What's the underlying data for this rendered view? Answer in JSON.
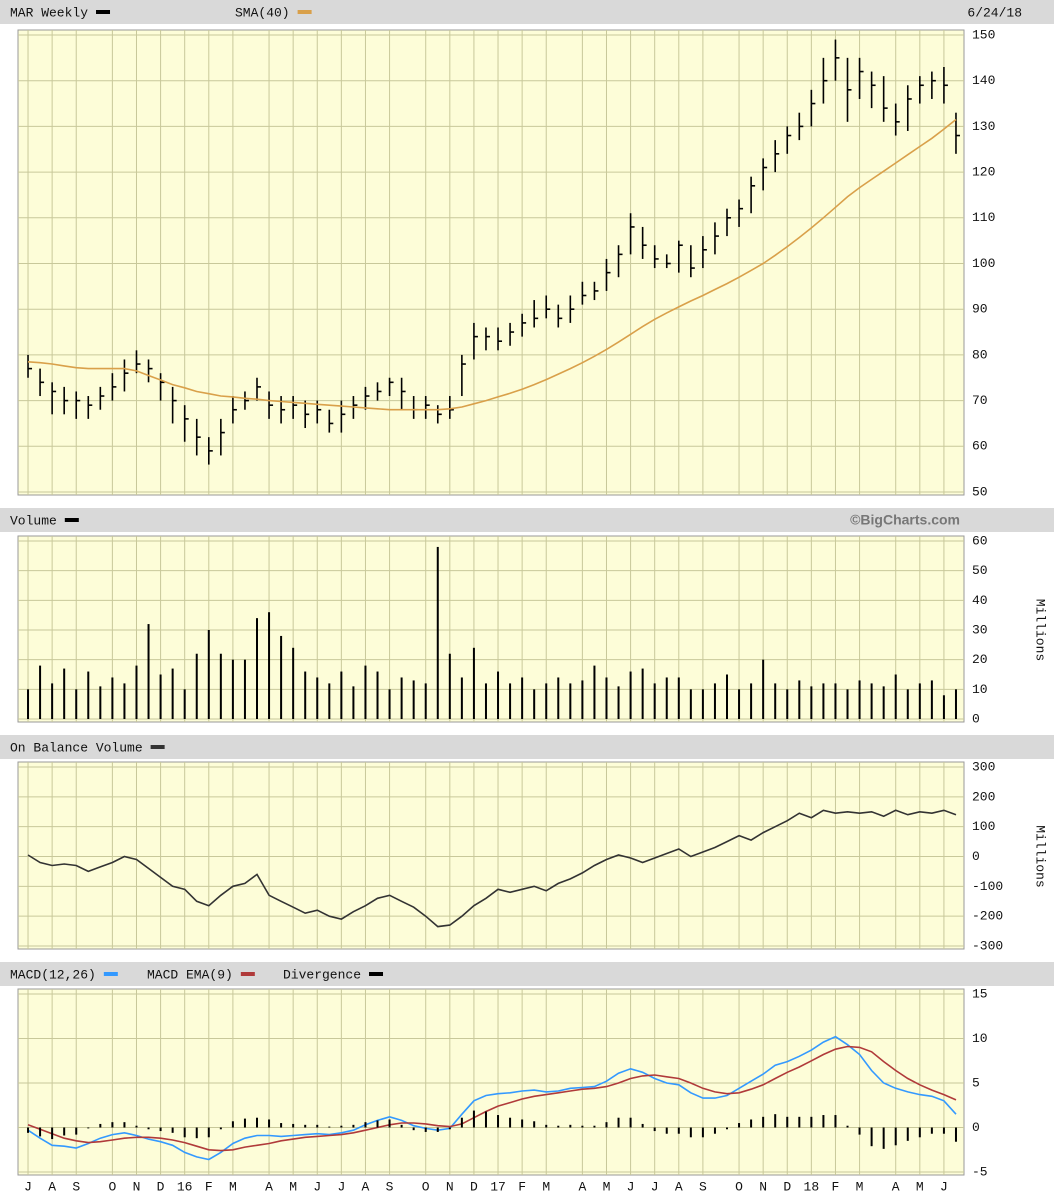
{
  "chart_data": [
    {
      "type": "ohlc",
      "date": "6/24/18",
      "grid": true,
      "ylim": [
        50,
        150
      ],
      "yticks": [
        50,
        60,
        70,
        80,
        90,
        100,
        110,
        120,
        130,
        140,
        150
      ],
      "series": [
        {
          "name": "MAR Weekly",
          "color": "#000000",
          "high": [
            80,
            77,
            74,
            73,
            72,
            71,
            73,
            76,
            79,
            81,
            79,
            76,
            73,
            69,
            66,
            62,
            66,
            71,
            72,
            75,
            72,
            71,
            71,
            70,
            70,
            68,
            70,
            71,
            73,
            74,
            75,
            75,
            71,
            71,
            69,
            71,
            80,
            87,
            86,
            86,
            87,
            89,
            92,
            93,
            91,
            93,
            96,
            96,
            101,
            104,
            111,
            108,
            104,
            102,
            105,
            104,
            106,
            109,
            112,
            114,
            119,
            123,
            127,
            130,
            133,
            138,
            145,
            149,
            145,
            145,
            142,
            141,
            135,
            139,
            141,
            142,
            143,
            133
          ],
          "low": [
            75,
            71,
            67,
            67,
            66,
            66,
            68,
            70,
            72,
            76,
            74,
            70,
            65,
            61,
            58,
            56,
            58,
            65,
            68,
            70,
            66,
            65,
            66,
            64,
            65,
            63,
            63,
            66,
            68,
            70,
            71,
            68,
            66,
            66,
            65,
            66,
            71,
            79,
            81,
            81,
            82,
            84,
            86,
            88,
            86,
            87,
            91,
            92,
            94,
            97,
            102,
            101,
            99,
            99,
            98,
            97,
            99,
            102,
            106,
            108,
            111,
            116,
            120,
            124,
            127,
            130,
            135,
            140,
            131,
            136,
            134,
            131,
            128,
            129,
            135,
            136,
            135,
            124
          ],
          "close": [
            77,
            74,
            72,
            70,
            70,
            69,
            71,
            73,
            76,
            78,
            77,
            74,
            70,
            66,
            62,
            59,
            63,
            68,
            70,
            73,
            69,
            68,
            69,
            67,
            68,
            65,
            67,
            69,
            71,
            72,
            74,
            72,
            68,
            69,
            67,
            68,
            78,
            84,
            84,
            83,
            85,
            87,
            88,
            90,
            88,
            90,
            93,
            94,
            98,
            102,
            108,
            104,
            101,
            100,
            104,
            99,
            103,
            106,
            110,
            112,
            117,
            121,
            124,
            128,
            130,
            135,
            140,
            145,
            138,
            142,
            139,
            134,
            131,
            136,
            139,
            140,
            139,
            128
          ]
        },
        {
          "name": "SMA(40)",
          "type": "line",
          "color": "#d9a04a",
          "values": [
            78.5,
            78.3,
            78,
            77.6,
            77.2,
            77,
            77,
            77,
            77,
            76.5,
            75.5,
            74.5,
            73.5,
            72.8,
            72,
            71.5,
            71,
            70.8,
            70.5,
            70.3,
            70,
            69.8,
            69.6,
            69.4,
            69.2,
            69,
            68.8,
            68.6,
            68.4,
            68.2,
            68,
            68,
            68,
            68,
            68,
            68.2,
            68.6,
            69.3,
            70,
            70.8,
            71.6,
            72.5,
            73.5,
            74.6,
            75.8,
            77,
            78.3,
            79.7,
            81.2,
            82.8,
            84.5,
            86.2,
            87.8,
            89.2,
            90.5,
            91.8,
            93,
            94.3,
            95.6,
            97,
            98.5,
            100,
            101.8,
            103.7,
            105.7,
            107.8,
            110,
            112.3,
            114.6,
            116.6,
            118.4,
            120.2,
            122,
            123.8,
            125.6,
            127.4,
            129.4,
            131.5
          ]
        }
      ]
    },
    {
      "type": "bar",
      "credit": "©BigCharts.com",
      "ylabel": "Millions",
      "grid": true,
      "ylim": [
        0,
        60
      ],
      "yticks": [
        0,
        10,
        20,
        30,
        40,
        50,
        60
      ],
      "series": [
        {
          "name": "Volume",
          "color": "#000000",
          "values": [
            10,
            18,
            12,
            17,
            10,
            16,
            11,
            14,
            12,
            18,
            32,
            15,
            17,
            10,
            22,
            30,
            22,
            20,
            20,
            34,
            36,
            28,
            24,
            16,
            14,
            12,
            16,
            11,
            18,
            16,
            10,
            14,
            13,
            12,
            58,
            22,
            14,
            24,
            12,
            16,
            12,
            14,
            10,
            12,
            14,
            12,
            13,
            18,
            14,
            11,
            16,
            17,
            12,
            14,
            14,
            10,
            10,
            12,
            15,
            10,
            12,
            20,
            12,
            10,
            13,
            11,
            12,
            12,
            10,
            13,
            12,
            11,
            15,
            10,
            12,
            13,
            8,
            10
          ]
        }
      ]
    },
    {
      "type": "line",
      "ylabel": "Millions",
      "grid": true,
      "ylim": [
        -300,
        300
      ],
      "yticks": [
        -300,
        -200,
        -100,
        0,
        100,
        200,
        300
      ],
      "series": [
        {
          "name": "On Balance Volume",
          "color": "#333333",
          "values": [
            5,
            -20,
            -30,
            -25,
            -30,
            -50,
            -35,
            -20,
            0,
            -10,
            -40,
            -70,
            -100,
            -110,
            -150,
            -165,
            -130,
            -100,
            -90,
            -60,
            -130,
            -150,
            -170,
            -190,
            -180,
            -200,
            -210,
            -185,
            -165,
            -140,
            -130,
            -150,
            -170,
            -200,
            -235,
            -230,
            -200,
            -165,
            -140,
            -110,
            -120,
            -110,
            -100,
            -115,
            -90,
            -75,
            -55,
            -30,
            -10,
            5,
            -5,
            -20,
            -5,
            10,
            25,
            0,
            15,
            30,
            50,
            70,
            55,
            80,
            100,
            120,
            145,
            130,
            155,
            145,
            150,
            145,
            150,
            135,
            155,
            140,
            150,
            145,
            155,
            140
          ]
        }
      ]
    },
    {
      "type": "line",
      "grid": true,
      "ylim": [
        -5,
        15
      ],
      "yticks": [
        -5,
        0,
        5,
        10,
        15
      ],
      "categories": [
        "J",
        null,
        "A",
        null,
        "S",
        null,
        null,
        "O",
        null,
        "N",
        null,
        "D",
        null,
        "16",
        null,
        "F",
        null,
        "M",
        null,
        null,
        "A",
        null,
        "M",
        null,
        "J",
        null,
        "J",
        null,
        "A",
        null,
        "S",
        null,
        null,
        "O",
        null,
        "N",
        null,
        "D",
        null,
        "17",
        null,
        "F",
        null,
        "M",
        null,
        null,
        "A",
        null,
        "M",
        null,
        "J",
        null,
        "J",
        null,
        "A",
        null,
        "S",
        null,
        null,
        "O",
        null,
        "N",
        null,
        "D",
        null,
        "18",
        null,
        "F",
        null,
        "M",
        null,
        null,
        "A",
        null,
        "M",
        null,
        "J",
        null
      ],
      "series": [
        {
          "name": "MACD(12,26)",
          "color": "#3399ff",
          "values": [
            -0.3,
            -1.2,
            -2,
            -2.1,
            -2.3,
            -1.8,
            -1.2,
            -0.8,
            -0.6,
            -0.9,
            -1.3,
            -1.6,
            -2,
            -2.8,
            -3.3,
            -3.6,
            -2.8,
            -1.8,
            -1.2,
            -0.9,
            -0.9,
            -1,
            -0.9,
            -0.8,
            -0.7,
            -0.8,
            -0.6,
            -0.3,
            0.3,
            0.8,
            1.2,
            0.8,
            0.2,
            -0.1,
            -0.3,
            -0.1,
            1.5,
            3,
            3.6,
            3.8,
            3.9,
            4.1,
            4.2,
            4,
            4.1,
            4.4,
            4.5,
            4.6,
            5.2,
            6.1,
            6.6,
            6.2,
            5.5,
            5,
            4.8,
            3.9,
            3.3,
            3.3,
            3.6,
            4.4,
            5.2,
            6,
            7,
            7.4,
            8,
            8.7,
            9.6,
            10.2,
            9.3,
            8.2,
            6.4,
            5,
            4.4,
            4,
            3.7,
            3.5,
            3,
            1.5
          ]
        },
        {
          "name": "MACD EMA(9)",
          "color": "#b03a3a",
          "values": [
            0.3,
            -0.2,
            -0.7,
            -1.2,
            -1.5,
            -1.7,
            -1.6,
            -1.4,
            -1.2,
            -1.1,
            -1.1,
            -1.2,
            -1.4,
            -1.7,
            -2.1,
            -2.5,
            -2.6,
            -2.5,
            -2.2,
            -2,
            -1.8,
            -1.5,
            -1.3,
            -1.1,
            -1,
            -0.9,
            -0.8,
            -0.6,
            -0.3,
            0,
            0.3,
            0.5,
            0.5,
            0.4,
            0.2,
            0.1,
            0.4,
            1.1,
            1.8,
            2.4,
            2.8,
            3.2,
            3.5,
            3.7,
            3.9,
            4.1,
            4.3,
            4.4,
            4.6,
            5,
            5.5,
            5.8,
            5.9,
            5.7,
            5.5,
            5,
            4.4,
            4,
            3.8,
            3.9,
            4.3,
            4.8,
            5.5,
            6.2,
            6.8,
            7.5,
            8.2,
            8.8,
            9.1,
            9,
            8.5,
            7.4,
            6.4,
            5.5,
            4.8,
            4.2,
            3.7,
            3.1
          ]
        },
        {
          "name": "Divergence",
          "type": "bar",
          "color": "#000000",
          "values": [
            -0.6,
            -1.0,
            -1.3,
            -0.9,
            -0.8,
            -0.1,
            0.4,
            0.6,
            0.6,
            0.2,
            -0.2,
            -0.4,
            -0.6,
            -1.1,
            -1.2,
            -1.1,
            -0.2,
            0.7,
            1,
            1.1,
            0.9,
            0.5,
            0.4,
            0.3,
            0.3,
            0.1,
            0.2,
            0.3,
            0.6,
            0.8,
            0.9,
            0.3,
            -0.3,
            -0.5,
            -0.5,
            -0.2,
            1.1,
            1.9,
            1.8,
            1.4,
            1.1,
            0.9,
            0.7,
            0.3,
            0.2,
            0.3,
            0.2,
            0.2,
            0.6,
            1.1,
            1.1,
            0.4,
            -0.4,
            -0.7,
            -0.7,
            -1.1,
            -1.1,
            -0.7,
            -0.2,
            0.5,
            0.9,
            1.2,
            1.5,
            1.2,
            1.2,
            1.2,
            1.4,
            1.4,
            0.2,
            -0.8,
            -2.1,
            -2.4,
            -2,
            -1.5,
            -1.1,
            -0.7,
            -0.7,
            -1.6
          ]
        }
      ]
    }
  ]
}
